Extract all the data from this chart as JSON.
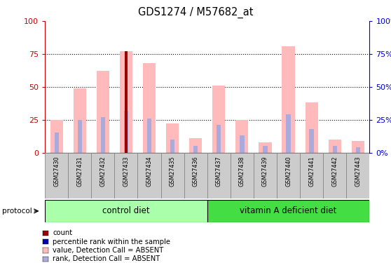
{
  "title": "GDS1274 / M57682_at",
  "samples": [
    "GSM27430",
    "GSM27431",
    "GSM27432",
    "GSM27433",
    "GSM27434",
    "GSM27435",
    "GSM27436",
    "GSM27437",
    "GSM27438",
    "GSM27439",
    "GSM27440",
    "GSM27441",
    "GSM27442",
    "GSM27443"
  ],
  "n_control": 7,
  "n_vitA": 7,
  "group_labels": [
    "control diet",
    "vitamin A deficient diet"
  ],
  "group_colors": [
    "#AAFFAA",
    "#44DD44"
  ],
  "pink_bars": [
    25,
    49,
    62,
    77,
    68,
    22,
    11,
    51,
    25,
    8,
    81,
    38,
    10,
    9
  ],
  "blue_bars": [
    15,
    25,
    27,
    32,
    26,
    10,
    5,
    21,
    13,
    5,
    29,
    18,
    5,
    4
  ],
  "dark_red_bar_index": 3,
  "dark_red_bar_value": 77,
  "dark_red_bar_color": "#990000",
  "pink_color": "#FFBBBB",
  "blue_color": "#AAAADD",
  "left_axis_color": "#CC0000",
  "right_axis_color": "#0000CC",
  "ylim": [
    0,
    100
  ],
  "yticks": [
    0,
    25,
    50,
    75,
    100
  ],
  "grid_dotted_values": [
    25,
    50,
    75
  ],
  "legend_items": [
    {
      "label": "count",
      "color": "#990000"
    },
    {
      "label": "percentile rank within the sample",
      "color": "#0000AA"
    },
    {
      "label": "value, Detection Call = ABSENT",
      "color": "#FFBBBB"
    },
    {
      "label": "rank, Detection Call = ABSENT",
      "color": "#AAAADD"
    }
  ],
  "protocol_label": "protocol"
}
